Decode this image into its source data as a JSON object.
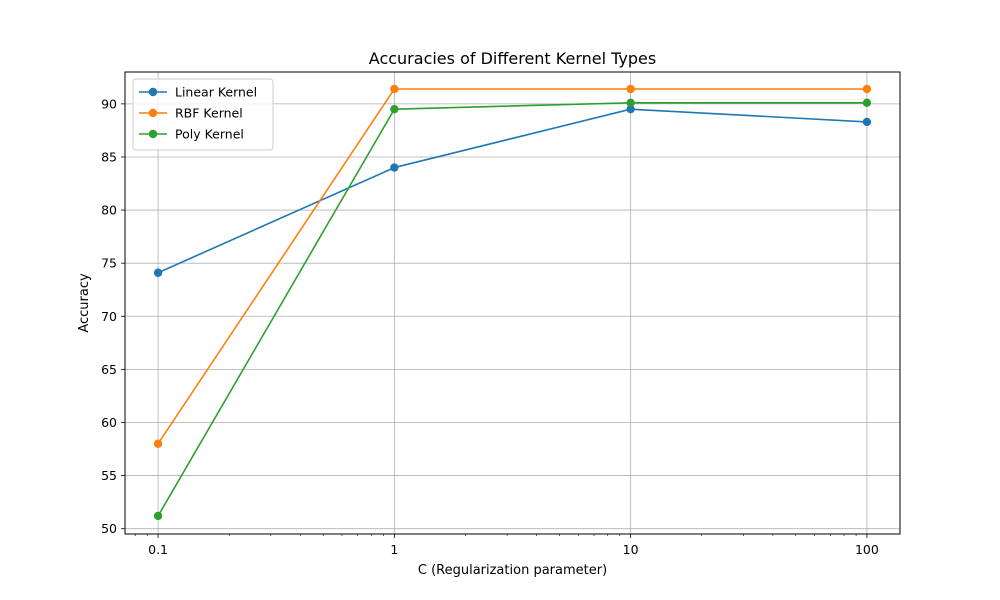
{
  "chart_data": {
    "type": "line",
    "title": "Accuracies of Different Kernel Types",
    "xlabel": "C (Regularization parameter)",
    "ylabel": "Accuracy",
    "xscale": "log",
    "x": [
      0.1,
      1,
      10,
      100
    ],
    "xtick_labels": [
      "0.1",
      "1",
      "10",
      "100"
    ],
    "ylim": [
      49.5,
      93.0
    ],
    "yticks": [
      50,
      55,
      60,
      65,
      70,
      75,
      80,
      85,
      90
    ],
    "grid": true,
    "legend_position": "top-left",
    "series": [
      {
        "name": "Linear Kernel",
        "color": "#1f77b4",
        "values": [
          74.1,
          84.0,
          89.5,
          88.3
        ]
      },
      {
        "name": "RBF Kernel",
        "color": "#ff7f0e",
        "values": [
          58.0,
          91.4,
          91.4,
          91.4
        ]
      },
      {
        "name": "Poly Kernel",
        "color": "#2ca02c",
        "values": [
          51.2,
          89.5,
          90.1,
          90.1
        ]
      }
    ]
  }
}
